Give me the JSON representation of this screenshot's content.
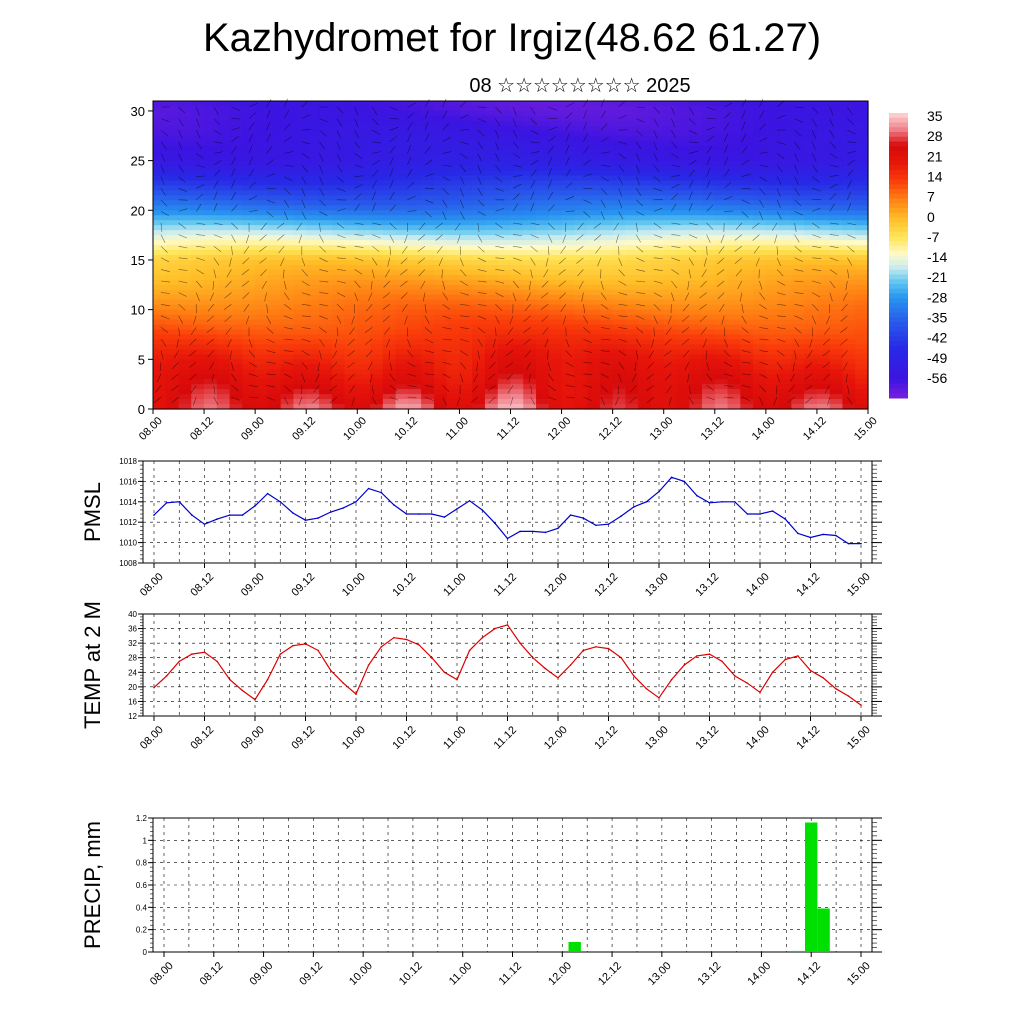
{
  "header": {
    "title": "Kazhydromet for Irgiz(48.62 61.27)",
    "subtitle": "08 ☆☆☆☆☆☆☆☆ 2025"
  },
  "colors": {
    "pmsl_line": "#0000cc",
    "temp_line": "#dd0000",
    "precip_bar": "#00e000",
    "grid": "#000000"
  },
  "chart_data": [
    {
      "type": "heatmap",
      "name": "cross-section",
      "title": "",
      "xlabel": "",
      "ylabel": "",
      "x_ticks": [
        "08.00",
        "08.12",
        "09.00",
        "09.12",
        "10.00",
        "10.12",
        "11.00",
        "11.12",
        "12.00",
        "12.12",
        "13.00",
        "13.12",
        "14.00",
        "14.12",
        "15.00"
      ],
      "ylim": [
        0,
        31
      ],
      "y_ticks": [
        0,
        5,
        10,
        15,
        20,
        25,
        30
      ],
      "colorbar": {
        "labels": [
          "35",
          "28",
          "21",
          "14",
          "7",
          "0",
          "-7",
          "-14",
          "-21",
          "-28",
          "-35",
          "-42",
          "-49",
          "-56"
        ],
        "range": [
          -63,
          42
        ]
      },
      "approx_fields": {
        "description": "temperature decreases with height; warm maxima near 11.00-11.12 surface",
        "levels": [
          0,
          5,
          10,
          15,
          20,
          25,
          30
        ],
        "typical_temp": [
          30,
          22,
          12,
          0,
          -30,
          -52,
          -58
        ]
      }
    },
    {
      "type": "line",
      "name": "pmsl",
      "ylabel": "PMSL",
      "ylim": [
        1008,
        1018
      ],
      "y_ticks": [
        1008,
        1010,
        1012,
        1014,
        1016,
        1018
      ],
      "x_ticks": [
        "08.00",
        "08.12",
        "09.00",
        "09.12",
        "10.00",
        "10.12",
        "11.00",
        "11.12",
        "12.00",
        "12.12",
        "13.00",
        "13.12",
        "14.00",
        "14.12",
        "15.00"
      ],
      "series": [
        {
          "x": [
            0,
            3,
            6,
            9,
            12,
            15,
            18,
            21,
            24,
            27,
            30,
            33,
            36,
            39,
            42,
            45,
            48,
            51,
            54,
            57,
            60,
            63,
            66,
            69,
            72,
            75,
            78,
            81,
            84,
            87,
            90,
            93,
            96,
            99,
            102,
            105,
            108,
            111,
            114,
            117,
            120,
            123,
            126,
            129,
            132,
            135,
            138,
            141,
            144,
            147,
            150,
            153,
            156,
            159,
            162,
            165,
            168
          ],
          "values": [
            1012.7,
            1013.9,
            1014.0,
            1012.7,
            1011.8,
            1012.3,
            1012.7,
            1012.7,
            1013.6,
            1014.8,
            1014.0,
            1012.9,
            1012.2,
            1012.4,
            1013.0,
            1013.4,
            1014.0,
            1015.3,
            1014.9,
            1013.7,
            1012.8,
            1012.8,
            1012.8,
            1012.5,
            1013.3,
            1014.1,
            1013.2,
            1011.9,
            1010.4,
            1011.1,
            1011.1,
            1011.0,
            1011.4,
            1012.7,
            1012.4,
            1011.7,
            1011.8,
            1012.6,
            1013.5,
            1014.0,
            1015.0,
            1016.4,
            1016.0,
            1014.6,
            1013.9,
            1014.0,
            1014.0,
            1012.8,
            1012.8,
            1013.1,
            1012.3,
            1010.9,
            1010.5,
            1010.8,
            1010.7,
            1009.9,
            1009.9
          ]
        }
      ]
    },
    {
      "type": "line",
      "name": "temp2m",
      "ylabel": "TEMP at 2 M",
      "ylim": [
        12,
        40
      ],
      "y_ticks": [
        12,
        16,
        20,
        24,
        28,
        32,
        36,
        40
      ],
      "x_ticks": [
        "08.00",
        "08.12",
        "09.00",
        "09.12",
        "10.00",
        "10.12",
        "11.00",
        "11.12",
        "12.00",
        "12.12",
        "13.00",
        "13.12",
        "14.00",
        "14.12",
        "15.00"
      ],
      "series": [
        {
          "x": [
            0,
            3,
            6,
            9,
            12,
            15,
            18,
            21,
            24,
            27,
            30,
            33,
            36,
            39,
            42,
            45,
            48,
            51,
            54,
            57,
            60,
            63,
            66,
            69,
            72,
            75,
            78,
            81,
            84,
            87,
            90,
            93,
            96,
            99,
            102,
            105,
            108,
            111,
            114,
            117,
            120,
            123,
            126,
            129,
            132,
            135,
            138,
            141,
            144,
            147,
            150,
            153,
            156,
            159,
            162,
            165,
            168
          ],
          "values": [
            19.8,
            23.0,
            27.0,
            29.0,
            29.5,
            27.0,
            22.0,
            19.0,
            16.5,
            22.0,
            29.0,
            31.3,
            31.8,
            30.0,
            24.5,
            21.0,
            18.0,
            26.0,
            31.0,
            33.5,
            33.0,
            31.5,
            28.0,
            24.0,
            22.0,
            30.0,
            33.5,
            36.0,
            37.0,
            32.0,
            28.0,
            25.0,
            22.5,
            26.0,
            30.0,
            31.0,
            30.5,
            28.0,
            23.0,
            19.5,
            17.0,
            22.0,
            26.0,
            28.5,
            29.0,
            27.0,
            23.0,
            21.0,
            18.5,
            24.0,
            27.5,
            28.5,
            24.5,
            22.5,
            19.5,
            17.5,
            15.0
          ]
        }
      ]
    },
    {
      "type": "bar",
      "name": "precip",
      "ylabel": "PRECIP, mm",
      "ylim": [
        0,
        1.2
      ],
      "y_ticks": [
        0.0,
        0.2,
        0.4,
        0.6,
        0.8,
        1.0,
        1.2
      ],
      "x_ticks": [
        "08.00",
        "08.12",
        "09.00",
        "09.12",
        "10.00",
        "10.12",
        "11.00",
        "11.12",
        "12.00",
        "12.12",
        "13.00",
        "13.12",
        "14.00",
        "14.12",
        "15.00"
      ],
      "series": [
        {
          "bars": [
            {
              "x": 99,
              "value": 0.09
            },
            {
              "x": 153,
              "value": 0.01
            },
            {
              "x": 156,
              "value": 1.16
            },
            {
              "x": 159,
              "value": 0.39
            }
          ]
        }
      ]
    }
  ]
}
